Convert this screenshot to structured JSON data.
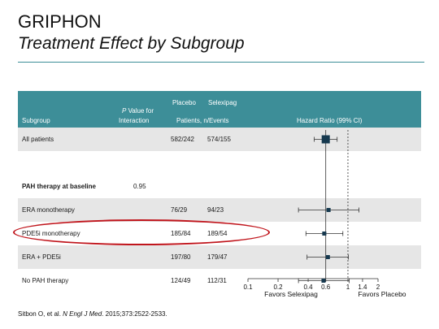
{
  "slide": {
    "title": "GRIPHON",
    "subtitle": "Treatment Effect by Subgroup",
    "citation_pre": "Sitbon O, et al. ",
    "citation_journal": "N Engl J Med",
    "citation_post": ". 2015;373:2522-2533."
  },
  "header": {
    "subgroup": "Subgroup",
    "pvalue_italic": "P",
    "pvalue_rest": " Value for",
    "interaction": "Interaction",
    "placebo": "Placebo",
    "selexipag": "Selexipag",
    "patients_events": "Patients, n/Events",
    "hazard_ratio": "Hazard Ratio (99% CI)"
  },
  "colors": {
    "header_bg": "#3d8e98",
    "shaded_row": "#e6e6e6",
    "marker": "#16394f",
    "highlight": "#c0151c"
  },
  "chart_data": {
    "type": "forest",
    "title": "Treatment Effect by Subgroup",
    "xlabel_left": "Favors Selexipag",
    "xlabel_right": "Favors Placebo",
    "x_scale": "log",
    "xlim": [
      0.1,
      2
    ],
    "x_ticks": [
      0.1,
      0.2,
      0.4,
      0.6,
      1,
      1.4,
      2
    ],
    "x_tick_labels": [
      "0.1",
      "0.2",
      "0.4",
      "0.6",
      "1",
      "1.4",
      "2"
    ],
    "overall_hr_reference": 0.6,
    "rows": [
      {
        "label": "All patients",
        "p_interaction": "",
        "placebo": "582/242",
        "selexipag": "574/155",
        "hr": 0.6,
        "ci_low": 0.46,
        "ci_high": 0.78,
        "shaded": true,
        "bold": false,
        "overall": true
      },
      {
        "label": "",
        "p_interaction": "",
        "placebo": "",
        "selexipag": "",
        "hr": null,
        "ci_low": null,
        "ci_high": null,
        "shaded": false,
        "bold": false
      },
      {
        "label": "PAH therapy at baseline",
        "p_interaction": "0.95",
        "placebo": "",
        "selexipag": "",
        "hr": null,
        "ci_low": null,
        "ci_high": null,
        "shaded": false,
        "bold": true
      },
      {
        "label": "ERA monotherapy",
        "p_interaction": "",
        "placebo": "76/29",
        "selexipag": "94/23",
        "hr": 0.64,
        "ci_low": 0.32,
        "ci_high": 1.29,
        "shaded": true,
        "bold": false
      },
      {
        "label": "PDE5i monotherapy",
        "p_interaction": "",
        "placebo": "185/84",
        "selexipag": "189/54",
        "hr": 0.58,
        "ci_low": 0.38,
        "ci_high": 0.89,
        "shaded": false,
        "bold": false
      },
      {
        "label": "ERA + PDE5i",
        "p_interaction": "",
        "placebo": "197/80",
        "selexipag": "179/47",
        "hr": 0.63,
        "ci_low": 0.39,
        "ci_high": 1.01,
        "shaded": true,
        "bold": false,
        "highlighted": true
      },
      {
        "label": "No PAH therapy",
        "p_interaction": "",
        "placebo": "124/49",
        "selexipag": "112/31",
        "hr": 0.57,
        "ci_low": 0.32,
        "ci_high": 1.03,
        "shaded": false,
        "bold": false
      }
    ]
  }
}
